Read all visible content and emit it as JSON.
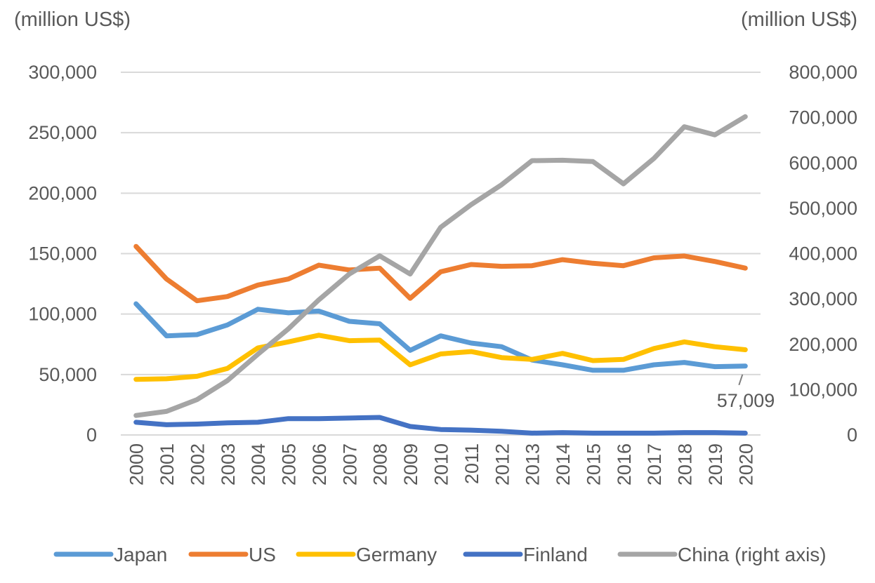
{
  "chart_data": {
    "type": "line",
    "title": "",
    "x": [
      "2000",
      "2001",
      "2002",
      "2003",
      "2004",
      "2005",
      "2006",
      "2007",
      "2008",
      "2009",
      "2010",
      "2011",
      "2012",
      "2013",
      "2014",
      "2015",
      "2016",
      "2017",
      "2018",
      "2019",
      "2020"
    ],
    "y_left": {
      "unit_label": "(million US$)",
      "range": [
        0,
        300000
      ],
      "ticks": [
        "0",
        "50,000",
        "100,000",
        "150,000",
        "200,000",
        "250,000",
        "300,000"
      ]
    },
    "y_right": {
      "unit_label": "(million US$)",
      "range": [
        0,
        800000
      ],
      "ticks": [
        "0",
        "100,000",
        "200,000",
        "300,000",
        "400,000",
        "500,000",
        "600,000",
        "700,000",
        "800,000"
      ]
    },
    "gridlines": true,
    "legend_position": "bottom",
    "series": [
      {
        "name": "Japan",
        "axis": "left",
        "color": "#5b9bd5",
        "values": [
          108500,
          82000,
          83000,
          91000,
          104000,
          101000,
          102500,
          94000,
          92000,
          70000,
          82000,
          76000,
          73000,
          62000,
          58000,
          53500,
          53500,
          58000,
          60000,
          56500,
          57009
        ]
      },
      {
        "name": "US",
        "axis": "left",
        "color": "#ed7d31",
        "values": [
          156000,
          129000,
          111000,
          114500,
          124000,
          129000,
          140500,
          136500,
          138000,
          113000,
          135000,
          141000,
          139500,
          140000,
          145000,
          142000,
          140000,
          146500,
          148000,
          143500,
          138000
        ]
      },
      {
        "name": "Germany",
        "axis": "left",
        "color": "#ffc000",
        "values": [
          46000,
          46500,
          48500,
          55000,
          72000,
          77000,
          82500,
          78000,
          78500,
          58000,
          67000,
          69000,
          64000,
          62500,
          67500,
          61500,
          62500,
          71500,
          77000,
          73000,
          70500
        ]
      },
      {
        "name": "Finland",
        "axis": "left",
        "color": "#4472c4",
        "values": [
          10500,
          8500,
          9000,
          10000,
          10500,
          13500,
          13500,
          14000,
          14500,
          7000,
          4500,
          4000,
          3000,
          1500,
          2000,
          1500,
          1500,
          1500,
          2000,
          2000,
          1500
        ]
      },
      {
        "name": "China (right axis)",
        "axis": "right",
        "color": "#a5a5a5",
        "values": [
          43000,
          52000,
          78000,
          120000,
          178000,
          234000,
          298000,
          355000,
          395000,
          355000,
          458000,
          508000,
          552000,
          605000,
          606000,
          603000,
          554000,
          610000,
          680000,
          662000,
          702000
        ]
      }
    ],
    "annotations": [
      {
        "text": "57,009",
        "series": "Japan",
        "x": "2020",
        "y": 57009
      }
    ]
  }
}
